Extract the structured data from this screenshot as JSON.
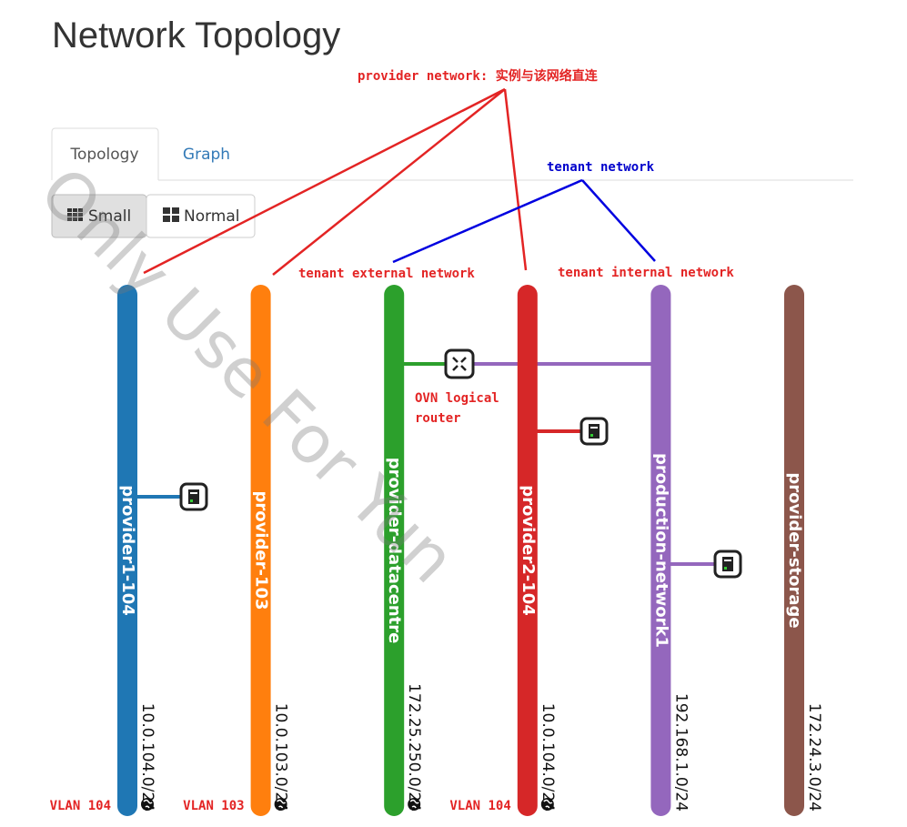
{
  "header": {
    "title": "Network Topology"
  },
  "tabs": [
    "Topology",
    "Graph"
  ],
  "buttons": [
    "Small",
    "Normal"
  ],
  "annotations": {
    "provider": "provider network: 实例与该网络直连",
    "tenant": "tenant network",
    "tenant_external": "tenant external network",
    "tenant_internal": "tenant internal network",
    "router": [
      "OVN logical",
      "router"
    ]
  },
  "networks": [
    {
      "name": "provider1-104",
      "subnet": "10.0.104.0/24",
      "vlan": "VLAN 104",
      "color": "#1f77b4",
      "external": true
    },
    {
      "name": "provider-103",
      "subnet": "10.0.103.0/24",
      "vlan": "VLAN 103",
      "color": "#ff7f0e",
      "external": true
    },
    {
      "name": "provider-datacentre",
      "subnet": "172.25.250.0/24",
      "color": "#2ca02c",
      "external": true
    },
    {
      "name": "provider2-104",
      "subnet": "10.0.104.0/24",
      "vlan": "VLAN 104",
      "color": "#d62728",
      "external": true
    },
    {
      "name": "production-network1",
      "subnet": "192.168.1.0/24",
      "color": "#9467bd",
      "external": false
    },
    {
      "name": "provider-storage",
      "subnet": "172.24.3.0/24",
      "color": "#8c564b",
      "external": false
    }
  ],
  "watermark": "Only Use For Yun"
}
